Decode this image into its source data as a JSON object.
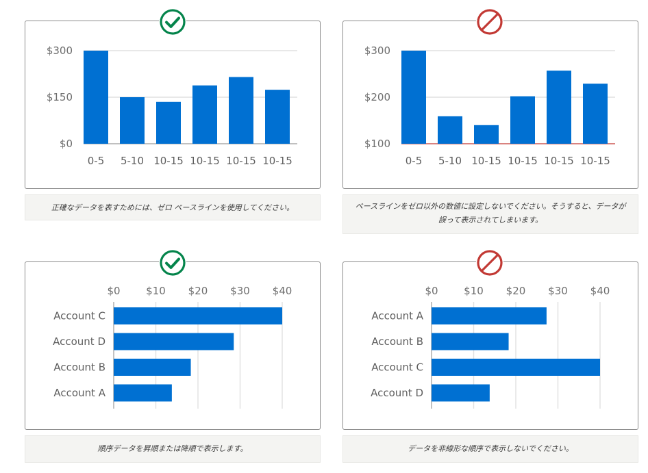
{
  "colors": {
    "bar": "#0070d2",
    "grid": "#e0e0e0",
    "axis": "#9a9a9a",
    "bad_axis": "#c23934",
    "good_icon": "#04844b",
    "bad_icon": "#c23934"
  },
  "icons": {
    "good": "checkmark-circle-icon",
    "bad": "prohibited-icon"
  },
  "captions": {
    "top_left": "正確なデータを表すためには、ゼロ ベースラインを使用してください。",
    "top_right": "ベースラインをゼロ以外の数値に設定しないでください。そうすると、データが誤って表示されてしまいます。",
    "bottom_left": "順序データを昇順または降順で表示します。",
    "bottom_right": "データを非線形な順序で表示しないでください。"
  },
  "chart_data": [
    {
      "type": "bar",
      "orientation": "vertical",
      "verdict": "good",
      "categories": [
        "0-5",
        "5-10",
        "10-15",
        "10-15",
        "10-15",
        "10-15"
      ],
      "values": [
        300,
        150,
        135,
        188,
        215,
        174
      ],
      "ylim": [
        0,
        300
      ],
      "yticks": [
        0,
        150,
        300
      ],
      "yticklabels": [
        "$0",
        "$150",
        "$300"
      ],
      "grid": true
    },
    {
      "type": "bar",
      "orientation": "vertical",
      "verdict": "bad",
      "categories": [
        "0-5",
        "5-10",
        "10-15",
        "10-15",
        "10-15",
        "10-15"
      ],
      "values": [
        300,
        159,
        140,
        202,
        257,
        229
      ],
      "ylim": [
        100,
        300
      ],
      "yticks": [
        100,
        200,
        300
      ],
      "yticklabels": [
        "$100",
        "$200",
        "$300"
      ],
      "grid": true
    },
    {
      "type": "bar",
      "orientation": "horizontal",
      "verdict": "good",
      "categories": [
        "Account C",
        "Account D",
        "Account B",
        "Account A"
      ],
      "values": [
        40,
        28.5,
        18.3,
        13.8
      ],
      "xlim": [
        0,
        40
      ],
      "xticks": [
        0,
        10,
        20,
        30,
        40
      ],
      "xticklabels": [
        "$0",
        "$10",
        "$20",
        "$30",
        "$40"
      ],
      "grid": true
    },
    {
      "type": "bar",
      "orientation": "horizontal",
      "verdict": "bad",
      "categories": [
        "Account A",
        "Account B",
        "Account C",
        "Account D"
      ],
      "values": [
        27.3,
        18.3,
        40,
        13.8
      ],
      "xlim": [
        0,
        40
      ],
      "xticks": [
        0,
        10,
        20,
        30,
        40
      ],
      "xticklabels": [
        "$0",
        "$10",
        "$20",
        "$30",
        "$40"
      ],
      "grid": true
    }
  ]
}
